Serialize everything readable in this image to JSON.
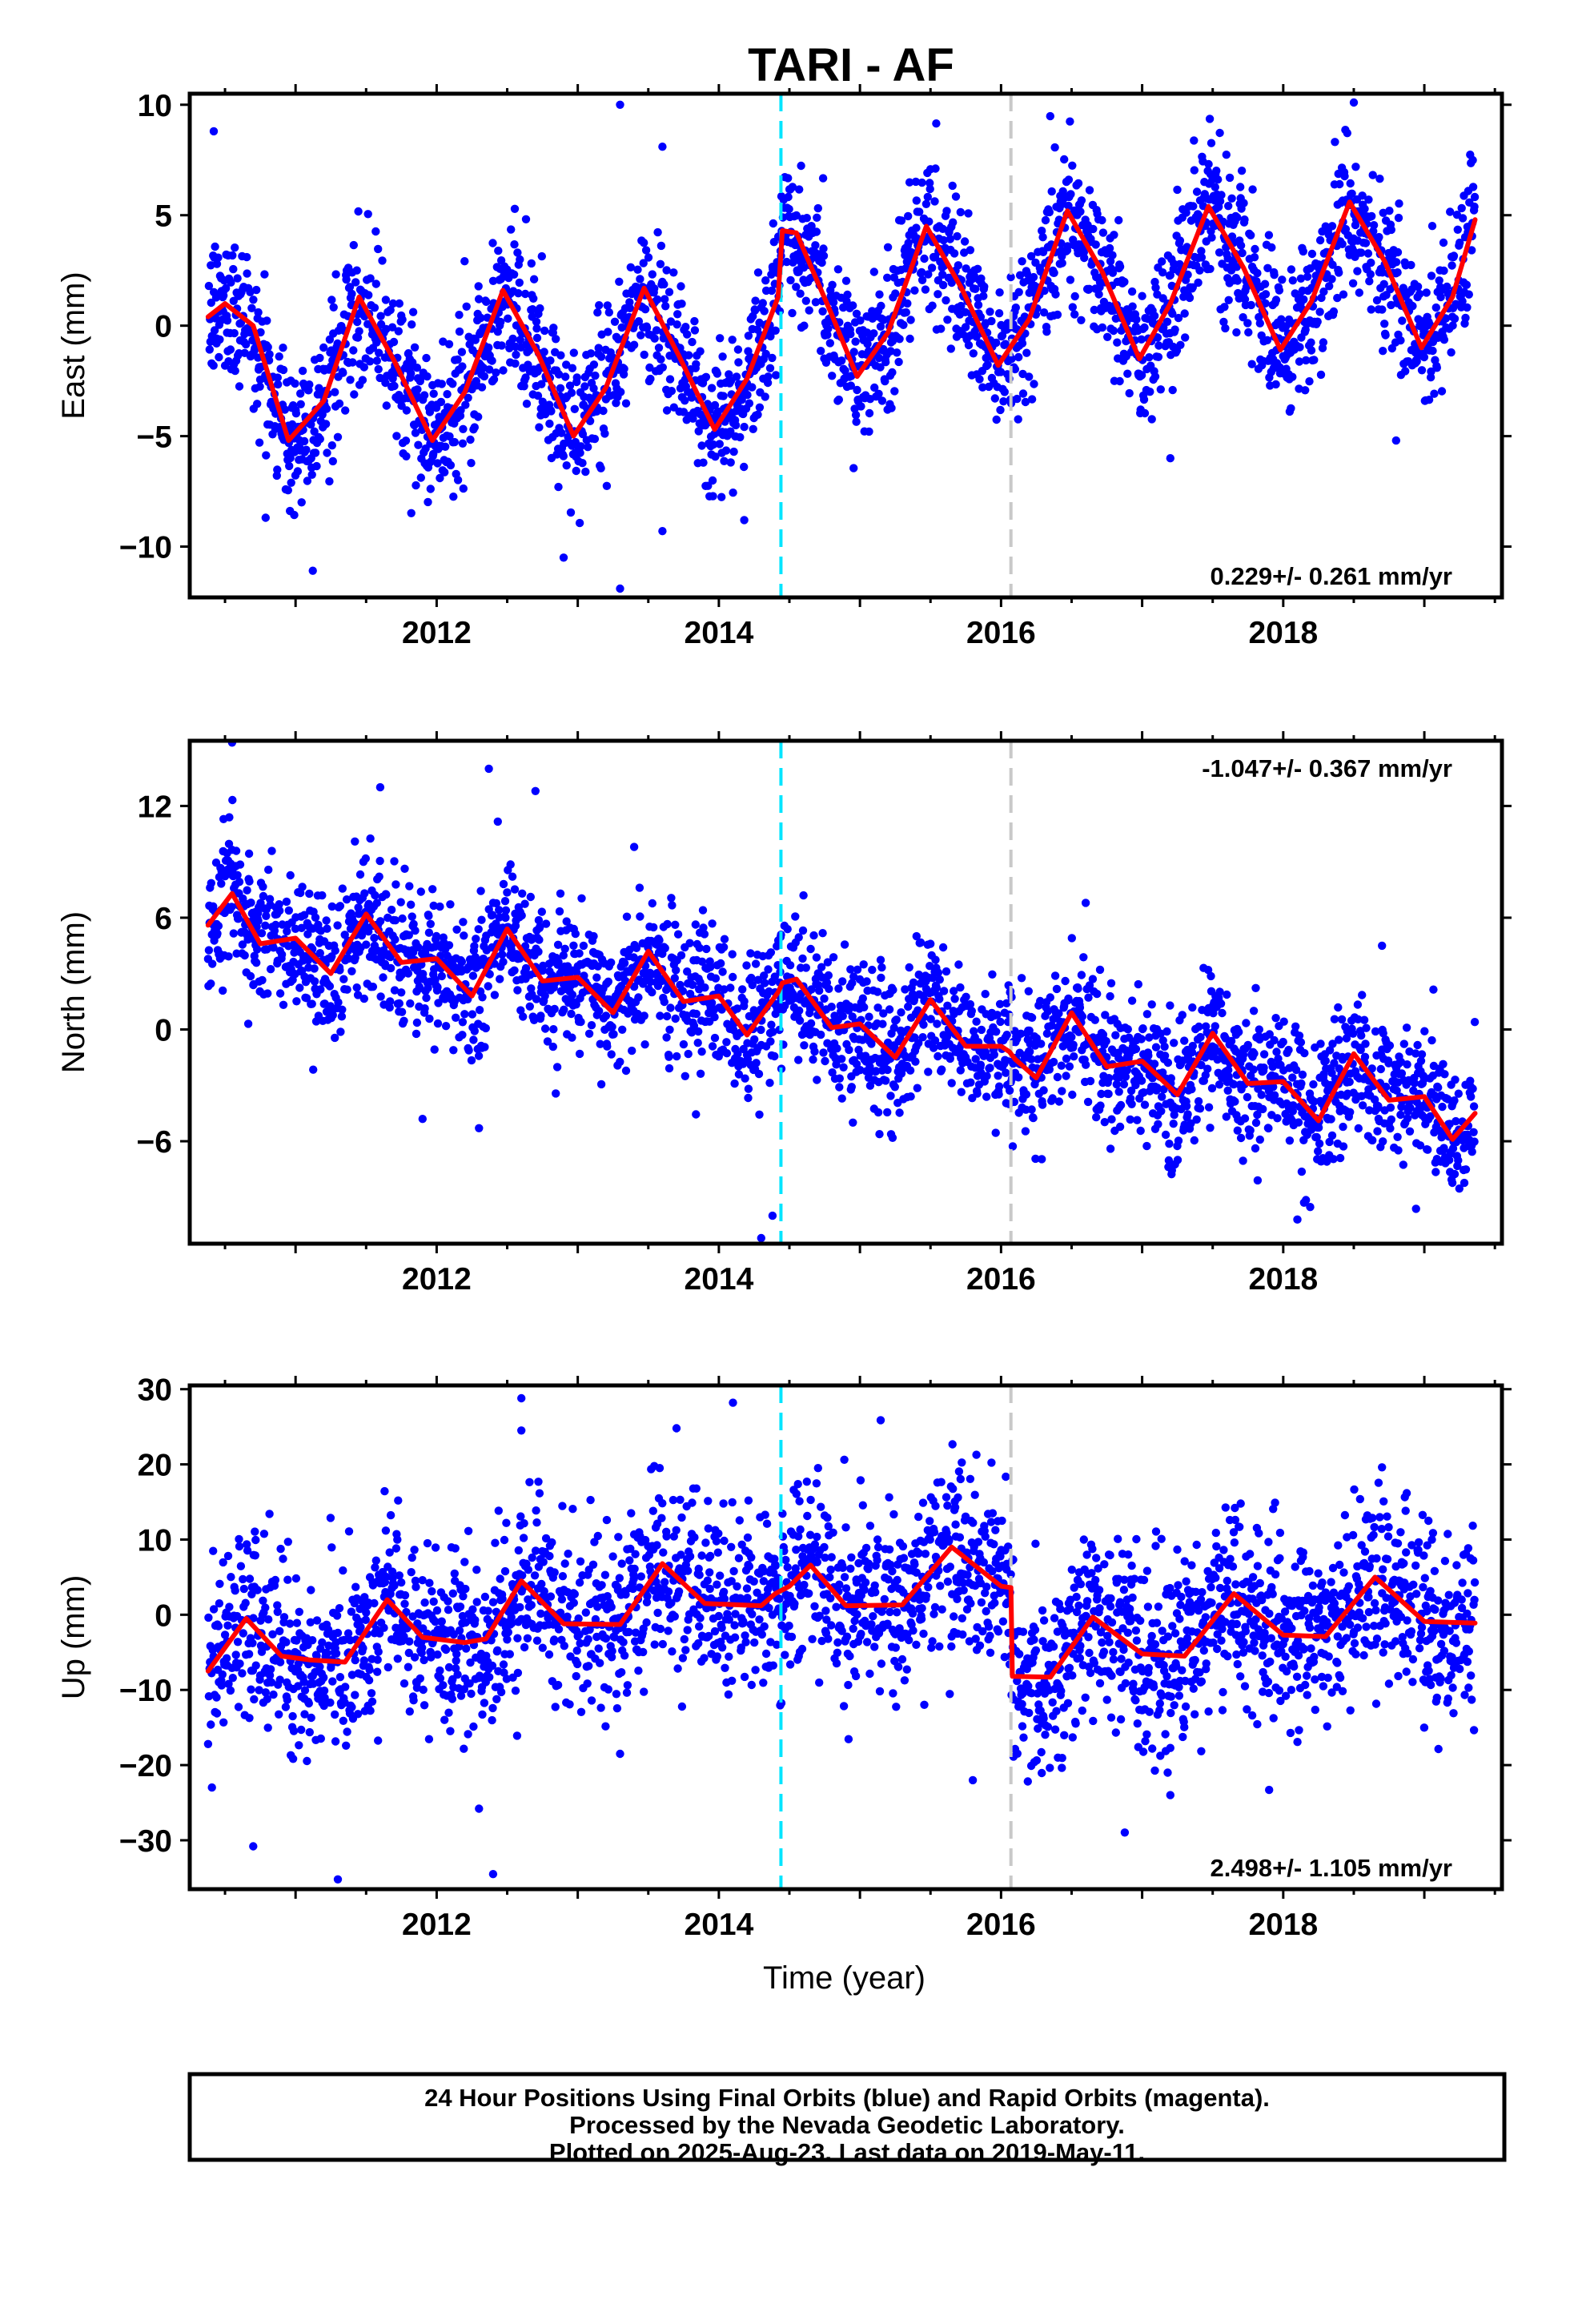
{
  "title": "TARI - AF",
  "colors": {
    "points": "#0000ff",
    "fit": "#ff0000",
    "antenna_change": "#00e5ff",
    "other_offset": "#c8c8c8",
    "frame": "#000000"
  },
  "chart_data": [
    {
      "type": "scatter",
      "component": "east",
      "ylabel": "East (mm)",
      "xlabel": "",
      "xlim": [
        2010.25,
        2019.55
      ],
      "ylim": [
        -12.3,
        10.5
      ],
      "x_ticks": [
        2012,
        2014,
        2016,
        2018
      ],
      "y_ticks": [
        -10,
        -5,
        0,
        5,
        10
      ],
      "y_tick_labels": [
        "−10",
        "−5",
        "0",
        "5",
        "10"
      ],
      "rate_text": "0.229+/- 0.261 mm/yr",
      "rate_position": "bottom-right",
      "vlines": [
        {
          "x": 2014.44,
          "style": "cyan-dashed"
        },
        {
          "x": 2016.07,
          "style": "gray-dashed"
        }
      ],
      "series": [
        {
          "kind": "scatter",
          "x_start": 2010.38,
          "x_end": 2019.36,
          "spread": 1.7,
          "outliers": [
            [
              2010.42,
              8.8
            ],
            [
              2013.3,
              10.0
            ],
            [
              2013.6,
              8.1
            ],
            [
              2013.3,
              -11.9
            ],
            [
              2012.9,
              -10.5
            ],
            [
              2013.6,
              -9.3
            ],
            [
              2014.18,
              -8.8
            ],
            [
              2018.8,
              -5.2
            ],
            [
              2017.2,
              -6.0
            ],
            [
              2018.5,
              10.1
            ]
          ]
        },
        {
          "kind": "line",
          "x": [
            2010.38,
            2010.5,
            2010.7,
            2010.95,
            2011.2,
            2011.45,
            2011.7,
            2011.97,
            2012.2,
            2012.47,
            2012.72,
            2012.97,
            2013.2,
            2013.47,
            2013.72,
            2013.97,
            2014.2,
            2014.42,
            2014.45,
            2014.55,
            2014.8,
            2014.98,
            2015.2,
            2015.47,
            2015.72,
            2015.98,
            2016.2,
            2016.47,
            2016.72,
            2016.98,
            2017.2,
            2017.47,
            2017.72,
            2017.98,
            2018.2,
            2018.47,
            2018.72,
            2018.98,
            2019.2,
            2019.36
          ],
          "y": [
            0.4,
            1.0,
            0.0,
            -5.2,
            -3.4,
            1.3,
            -1.6,
            -5.2,
            -3.0,
            1.6,
            -1.3,
            -5.0,
            -2.8,
            1.7,
            -1.4,
            -4.7,
            -2.4,
            1.3,
            4.3,
            4.2,
            0.5,
            -2.3,
            -0.3,
            4.5,
            1.7,
            -1.8,
            0.3,
            5.2,
            2.4,
            -1.5,
            1.0,
            5.4,
            2.6,
            -1.1,
            1.1,
            5.6,
            2.9,
            -1.0,
            1.3,
            4.8
          ]
        }
      ]
    },
    {
      "type": "scatter",
      "component": "north",
      "ylabel": "North (mm)",
      "xlabel": "",
      "xlim": [
        2010.25,
        2019.55
      ],
      "ylim": [
        -11.5,
        15.5
      ],
      "x_ticks": [
        2012,
        2014,
        2016,
        2018
      ],
      "y_ticks": [
        -6,
        0,
        6,
        12
      ],
      "y_tick_labels": [
        "−6",
        "0",
        "6",
        "12"
      ],
      "rate_text": "-1.047+/- 0.367 mm/yr",
      "rate_position": "top-right",
      "vlines": [
        {
          "x": 2014.44,
          "style": "cyan-dashed"
        },
        {
          "x": 2016.07,
          "style": "gray-dashed"
        }
      ],
      "series": [
        {
          "kind": "scatter",
          "x_start": 2010.38,
          "x_end": 2019.36,
          "spread": 1.9,
          "outliers": [
            [
              2010.55,
              15.4
            ],
            [
              2012.37,
              14.0
            ],
            [
              2011.6,
              13.0
            ],
            [
              2012.7,
              12.8
            ],
            [
              2013.4,
              9.8
            ],
            [
              2014.3,
              -11.2
            ],
            [
              2014.38,
              -10.0
            ],
            [
              2018.1,
              -10.2
            ],
            [
              2011.9,
              -4.8
            ],
            [
              2012.3,
              -5.3
            ],
            [
              2014.95,
              -5.0
            ],
            [
              2016.6,
              6.8
            ],
            [
              2018.7,
              4.5
            ],
            [
              2014.6,
              7.2
            ]
          ]
        },
        {
          "kind": "line",
          "x": [
            2010.38,
            2010.55,
            2010.75,
            2011.0,
            2011.25,
            2011.5,
            2011.75,
            2012.0,
            2012.25,
            2012.5,
            2012.75,
            2013.0,
            2013.25,
            2013.5,
            2013.75,
            2014.0,
            2014.2,
            2014.42,
            2014.45,
            2014.55,
            2014.8,
            2015.0,
            2015.25,
            2015.5,
            2015.75,
            2016.0,
            2016.06,
            2016.1,
            2016.25,
            2016.5,
            2016.75,
            2017.0,
            2017.25,
            2017.5,
            2017.75,
            2018.0,
            2018.25,
            2018.5,
            2018.75,
            2019.0,
            2019.2,
            2019.36
          ],
          "y": [
            5.6,
            7.3,
            4.6,
            4.9,
            3.0,
            6.2,
            3.6,
            3.8,
            1.8,
            5.4,
            2.6,
            2.8,
            0.9,
            4.2,
            1.5,
            1.8,
            -0.3,
            2.0,
            2.5,
            2.7,
            0.1,
            0.3,
            -1.5,
            1.6,
            -0.9,
            -0.9,
            -1.2,
            -1.6,
            -2.6,
            0.9,
            -2.0,
            -1.7,
            -3.5,
            -0.2,
            -2.9,
            -2.8,
            -4.9,
            -1.3,
            -3.8,
            -3.6,
            -5.9,
            -4.5
          ]
        }
      ]
    },
    {
      "type": "scatter",
      "component": "up",
      "ylabel": "Up (mm)",
      "xlabel": "Time (year)",
      "xlim": [
        2010.25,
        2019.55
      ],
      "ylim": [
        -36.5,
        30.5
      ],
      "x_ticks": [
        2012,
        2014,
        2016,
        2018
      ],
      "y_ticks": [
        -30,
        -20,
        -10,
        0,
        10,
        20,
        30
      ],
      "y_tick_labels": [
        "−30",
        "−20",
        "−10",
        "0",
        "10",
        "20",
        "30"
      ],
      "rate_text": "2.498+/- 1.105 mm/yr",
      "rate_position": "bottom-right",
      "vlines": [
        {
          "x": 2014.44,
          "style": "cyan-dashed"
        },
        {
          "x": 2016.07,
          "style": "gray-dashed"
        }
      ],
      "series": [
        {
          "kind": "scatter",
          "x_start": 2010.38,
          "x_end": 2019.36,
          "spread": 6.0,
          "outliers": [
            [
              2012.6,
              28.8
            ],
            [
              2014.1,
              28.2
            ],
            [
              2013.7,
              24.8
            ],
            [
              2012.6,
              24.5
            ],
            [
              2012.4,
              -34.5
            ],
            [
              2011.3,
              -35.2
            ],
            [
              2010.7,
              -30.8
            ],
            [
              2013.3,
              -18.5
            ],
            [
              2017.9,
              -23.3
            ],
            [
              2015.8,
              -22.0
            ],
            [
              2017.2,
              -24.0
            ],
            [
              2018.7,
              19.6
            ],
            [
              2012.3,
              -25.8
            ]
          ]
        },
        {
          "kind": "line",
          "x": [
            2010.38,
            2010.65,
            2010.9,
            2011.1,
            2011.35,
            2011.65,
            2011.9,
            2012.2,
            2012.35,
            2012.6,
            2012.9,
            2013.3,
            2013.6,
            2013.9,
            2014.3,
            2014.4,
            2014.44,
            2014.5,
            2014.65,
            2014.9,
            2015.3,
            2015.65,
            2016.0,
            2016.07,
            2016.08,
            2016.35,
            2016.65,
            2017.0,
            2017.3,
            2017.65,
            2018.0,
            2018.3,
            2018.65,
            2019.0,
            2019.36
          ],
          "y": [
            -7.5,
            -0.5,
            -5.5,
            -6.0,
            -6.3,
            2.0,
            -3.0,
            -3.7,
            -3.2,
            4.5,
            -1.2,
            -1.3,
            6.8,
            1.5,
            1.2,
            2.8,
            3.2,
            3.8,
            6.6,
            1.2,
            1.3,
            9.0,
            3.8,
            3.6,
            -8.2,
            -8.3,
            -0.3,
            -5.2,
            -5.5,
            2.8,
            -2.7,
            -2.9,
            5.0,
            -0.9,
            -1.1
          ]
        }
      ]
    }
  ],
  "footer": {
    "line1": "24 Hour Positions Using Final Orbits (blue) and Rapid Orbits (magenta).",
    "line2": "Processed by the Nevada Geodetic Laboratory.",
    "line3": "Plotted on 2025-Aug-23. Last data on 2019-May-11."
  }
}
